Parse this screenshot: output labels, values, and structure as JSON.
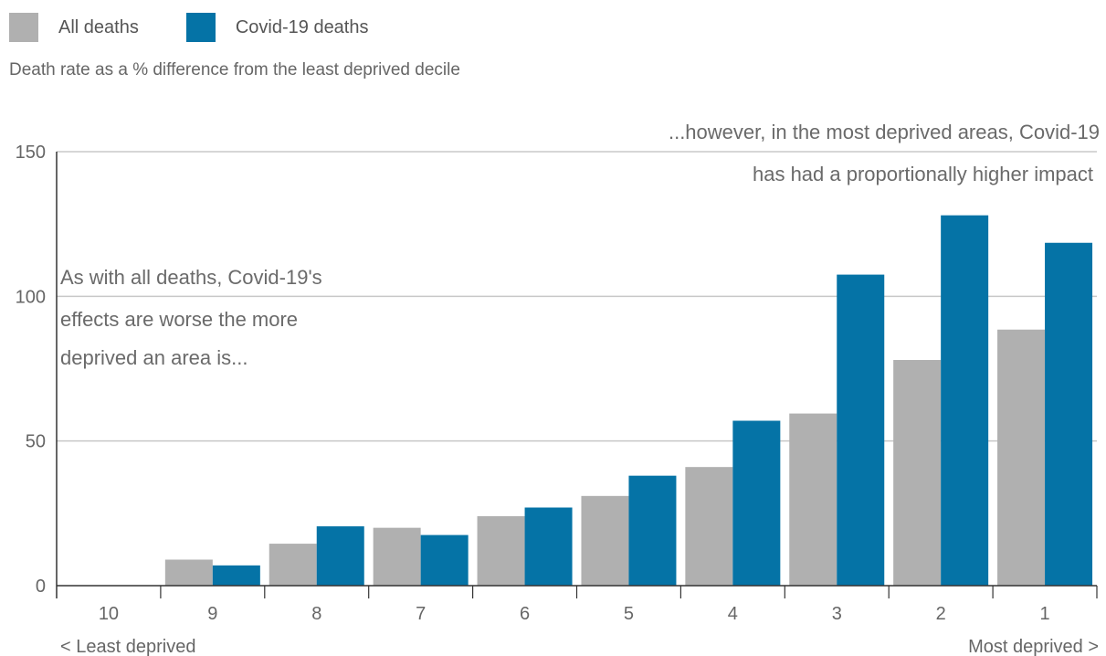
{
  "legend": [
    {
      "label": "All deaths",
      "color": "#b0b0b0"
    },
    {
      "label": "Covid-19 deaths",
      "color": "#0573a6"
    }
  ],
  "subtitle": "Death rate as a % difference from the least deprived decile",
  "annotations": {
    "left": [
      "As with all deaths, Covid-19's",
      "effects are worse the more",
      "deprived an area is..."
    ],
    "right": [
      "...however, in the most deprived areas, Covid-19",
      "has had a proportionally higher impact"
    ]
  },
  "x_extremes": {
    "left": "< Least deprived",
    "right": "Most deprived >"
  },
  "chart_data": {
    "type": "bar",
    "categories": [
      "10",
      "9",
      "8",
      "7",
      "6",
      "5",
      "4",
      "3",
      "2",
      "1"
    ],
    "series": [
      {
        "name": "All deaths",
        "values": [
          0,
          9,
          14.5,
          20,
          24,
          31,
          41,
          59.5,
          78,
          88.5
        ],
        "color": "#b0b0b0"
      },
      {
        "name": "Covid-19 deaths",
        "values": [
          0,
          7,
          20.5,
          17.5,
          27,
          38,
          57,
          107.5,
          128,
          118.5
        ],
        "color": "#0573a6"
      }
    ],
    "ylabel": "Death rate as a % difference from the least deprived decile",
    "ylim": [
      0,
      150
    ],
    "yticks": [
      0,
      50,
      100,
      150
    ],
    "grid": true
  }
}
